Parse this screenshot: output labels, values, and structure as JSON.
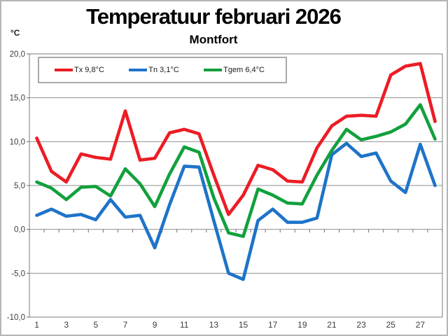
{
  "header": {
    "title": "Temperatuur februari 2026",
    "subtitle": "Montfort"
  },
  "axes": {
    "y_unit": "°C"
  },
  "legend": {
    "items": [
      {
        "label": "Tx 9,8°C",
        "color": "#ec1c24"
      },
      {
        "label": "Tn 3,1°C",
        "color": "#1e73c8"
      },
      {
        "label": "Tgem 6,4°C",
        "color": "#12a03c"
      }
    ]
  },
  "chart_data": {
    "type": "line",
    "title": "Temperatuur februari 2026",
    "subtitle": "Montfort",
    "xlabel": "",
    "ylabel": "°C",
    "grid": true,
    "legend_position": "top-left",
    "ylim": [
      -10,
      20
    ],
    "y_step": 5,
    "y_tick_labels": [
      "-10,0",
      "-5,0",
      "0,0",
      "5,0",
      "10,0",
      "15,0",
      "20,0"
    ],
    "x_tick_labels": [
      "1",
      "3",
      "5",
      "7",
      "9",
      "11",
      "13",
      "15",
      "17",
      "19",
      "21",
      "23",
      "25",
      "27"
    ],
    "days": [
      1,
      2,
      3,
      4,
      5,
      6,
      7,
      8,
      9,
      10,
      11,
      12,
      13,
      14,
      15,
      16,
      17,
      18,
      19,
      20,
      21,
      22,
      23,
      24,
      25,
      26,
      27,
      28
    ],
    "series": [
      {
        "name": "Tx",
        "mean_label": "Tx 9,8°C",
        "color": "#ec1c24",
        "values": [
          10.4,
          6.6,
          5.4,
          8.6,
          8.2,
          8.0,
          13.5,
          7.9,
          8.1,
          11.0,
          11.4,
          10.9,
          6.2,
          1.7,
          3.9,
          7.3,
          6.8,
          5.5,
          5.4,
          9.3,
          11.8,
          12.9,
          13.0,
          12.9,
          17.6,
          18.6,
          18.9,
          12.3
        ]
      },
      {
        "name": "Tn",
        "mean_label": "Tn 3,1°C",
        "color": "#1e73c8",
        "values": [
          1.6,
          2.3,
          1.5,
          1.7,
          1.1,
          3.4,
          1.4,
          1.6,
          -2.1,
          2.8,
          7.2,
          7.1,
          1.0,
          -5.0,
          -5.7,
          1.0,
          2.3,
          0.8,
          0.8,
          1.3,
          8.5,
          9.8,
          8.3,
          8.7,
          5.5,
          4.2,
          9.7,
          5.0
        ]
      },
      {
        "name": "Tgem",
        "mean_label": "Tgem 6,4°C",
        "color": "#12a03c",
        "values": [
          5.4,
          4.7,
          3.4,
          4.8,
          4.9,
          3.8,
          6.9,
          5.2,
          2.6,
          6.3,
          9.4,
          8.8,
          3.6,
          -0.4,
          -0.8,
          4.6,
          3.9,
          3.0,
          2.9,
          6.2,
          9.0,
          11.4,
          10.2,
          10.6,
          11.1,
          12.0,
          14.2,
          10.3
        ]
      }
    ]
  }
}
